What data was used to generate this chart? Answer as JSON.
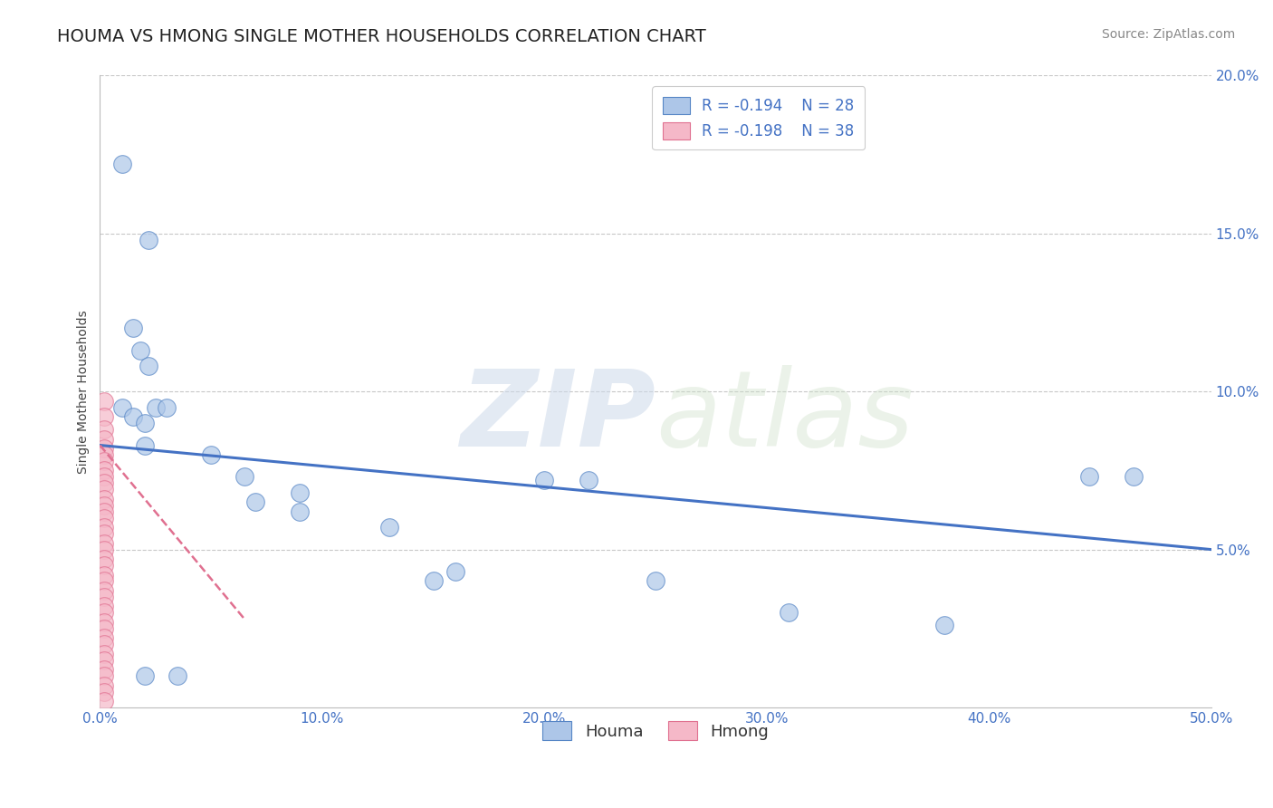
{
  "title": "HOUMA VS HMONG SINGLE MOTHER HOUSEHOLDS CORRELATION CHART",
  "source": "Source: ZipAtlas.com",
  "ylabel": "Single Mother Households",
  "xlim": [
    0.0,
    0.5
  ],
  "ylim": [
    0.0,
    0.2
  ],
  "xticks": [
    0.0,
    0.1,
    0.2,
    0.3,
    0.4,
    0.5
  ],
  "xticklabels": [
    "0.0%",
    "10.0%",
    "20.0%",
    "30.0%",
    "40.0%",
    "50.0%"
  ],
  "yticks": [
    0.0,
    0.05,
    0.1,
    0.15,
    0.2
  ],
  "yticklabels": [
    "",
    "5.0%",
    "10.0%",
    "15.0%",
    "20.0%"
  ],
  "houma_r": "R = -0.194",
  "houma_n": "N = 28",
  "hmong_r": "R = -0.198",
  "hmong_n": "N = 38",
  "houma_color": "#adc6e8",
  "hmong_color": "#f5b8c8",
  "houma_edge_color": "#5585c5",
  "hmong_edge_color": "#e07090",
  "houma_line_color": "#4472c4",
  "hmong_line_color": "#e07090",
  "houma_scatter_x": [
    0.01,
    0.022,
    0.015,
    0.018,
    0.022,
    0.01,
    0.015,
    0.02,
    0.025,
    0.03,
    0.02,
    0.05,
    0.065,
    0.07,
    0.09,
    0.09,
    0.13,
    0.16,
    0.2,
    0.22,
    0.25,
    0.31,
    0.38,
    0.445,
    0.465,
    0.02,
    0.035,
    0.15
  ],
  "houma_scatter_y": [
    0.172,
    0.148,
    0.12,
    0.113,
    0.108,
    0.095,
    0.092,
    0.09,
    0.095,
    0.095,
    0.083,
    0.08,
    0.073,
    0.065,
    0.068,
    0.062,
    0.057,
    0.043,
    0.072,
    0.072,
    0.04,
    0.03,
    0.026,
    0.073,
    0.073,
    0.01,
    0.01,
    0.04
  ],
  "hmong_scatter_x": [
    0.002,
    0.002,
    0.002,
    0.002,
    0.002,
    0.002,
    0.002,
    0.002,
    0.002,
    0.002,
    0.002,
    0.002,
    0.002,
    0.002,
    0.002,
    0.002,
    0.002,
    0.002,
    0.002,
    0.002,
    0.002,
    0.002,
    0.002,
    0.002,
    0.002,
    0.002,
    0.002,
    0.002,
    0.002,
    0.002,
    0.002,
    0.002,
    0.002,
    0.002,
    0.002,
    0.002,
    0.002,
    0.002
  ],
  "hmong_scatter_y": [
    0.097,
    0.092,
    0.088,
    0.085,
    0.082,
    0.08,
    0.078,
    0.075,
    0.073,
    0.071,
    0.069,
    0.066,
    0.064,
    0.062,
    0.06,
    0.057,
    0.055,
    0.052,
    0.05,
    0.047,
    0.045,
    0.042,
    0.04,
    0.037,
    0.035,
    0.032,
    0.03,
    0.027,
    0.025,
    0.022,
    0.02,
    0.017,
    0.015,
    0.012,
    0.01,
    0.007,
    0.005,
    0.002
  ],
  "houma_trendline_x": [
    0.0,
    0.5
  ],
  "houma_trendline_y": [
    0.083,
    0.05
  ],
  "hmong_trendline_x": [
    0.0,
    0.065
  ],
  "hmong_trendline_y": [
    0.083,
    0.028
  ],
  "watermark_zip": "ZIP",
  "watermark_atlas": "atlas",
  "background_color": "#ffffff",
  "grid_color": "#c8c8c8",
  "title_fontsize": 14,
  "axis_label_fontsize": 10,
  "tick_fontsize": 11,
  "legend_fontsize": 12,
  "source_fontsize": 10
}
